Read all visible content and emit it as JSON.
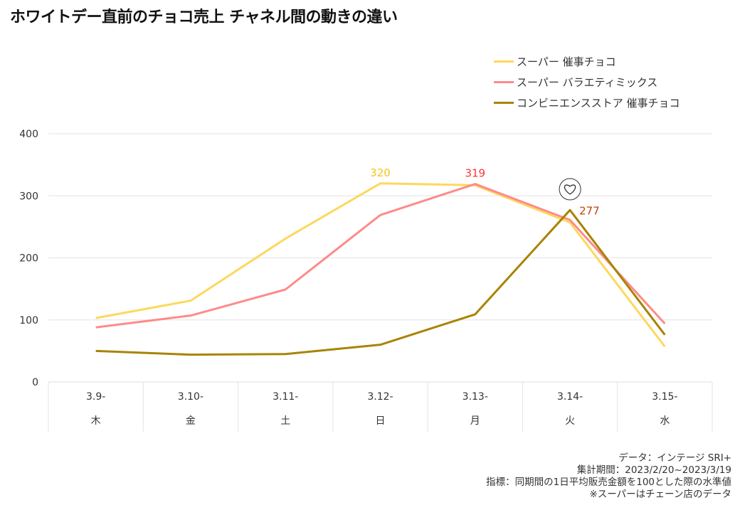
{
  "title": "ホワイトデー直前のチョコ売上 チャネル間の動きの違い",
  "chart_data": {
    "type": "line",
    "title": "ホワイトデー直前のチョコ売上 チャネル間の動きの違い",
    "categories": [
      "3.9-",
      "3.10-",
      "3.11-",
      "3.12-",
      "3.13-",
      "3.14-",
      "3.15-"
    ],
    "category_days": [
      "木",
      "金",
      "土",
      "日",
      "月",
      "火",
      "水"
    ],
    "ylim": [
      0,
      400
    ],
    "yticks": [
      0,
      100,
      200,
      300,
      400
    ],
    "grid": true,
    "legend_position": "top-right",
    "series": [
      {
        "name": "スーパー 催事チョコ",
        "color": "#FDD85D",
        "values": [
          103,
          131,
          231,
          320,
          317,
          257,
          57
        ]
      },
      {
        "name": "スーパー バラエティミックス",
        "color": "#FF8A8A",
        "values": [
          88,
          107,
          149,
          269,
          319,
          261,
          94
        ]
      },
      {
        "name": "コンビニエンスストア 催事チョコ",
        "color": "#A88400",
        "values": [
          50,
          44,
          45,
          60,
          109,
          277,
          76
        ]
      }
    ],
    "annotations": [
      {
        "series": 0,
        "index": 3,
        "text": "320",
        "color": "#F5C518"
      },
      {
        "series": 1,
        "index": 4,
        "text": "319",
        "color": "#FF3333"
      },
      {
        "series": 2,
        "index": 5,
        "text": "277",
        "color": "#C0440A"
      }
    ]
  },
  "notes": [
    "データ：インテージ SRI+",
    "集計期間：2023/2/20~2023/3/19",
    "指標：同期間の1日平均販売金額を100とした際の水準値",
    "※スーパーはチェーン店のデータ"
  ]
}
